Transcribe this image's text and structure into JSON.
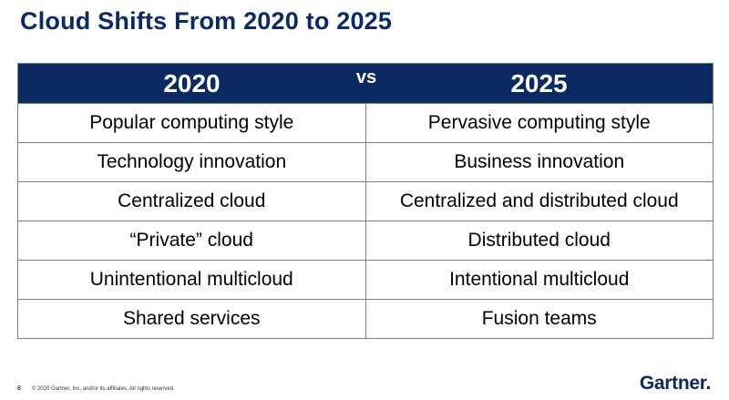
{
  "slide": {
    "title": "Cloud Shifts From 2020 to 2025",
    "colors": {
      "brand_navy": "#0b2a63",
      "border": "#7f7f7f"
    }
  },
  "table": {
    "header_left": "2020",
    "header_vs": "vs",
    "header_right": "2025",
    "rows": [
      {
        "left": "Popular computing style",
        "right": "Pervasive computing style"
      },
      {
        "left": "Technology innovation",
        "right": "Business innovation"
      },
      {
        "left": "Centralized cloud",
        "right": "Centralized and distributed cloud"
      },
      {
        "left": "“Private” cloud",
        "right": "Distributed cloud"
      },
      {
        "left": "Unintentional multicloud",
        "right": "Intentional multicloud"
      },
      {
        "left": "Shared services",
        "right": "Fusion teams"
      }
    ]
  },
  "footer": {
    "page_number": "8",
    "copyright": "© 2020 Gartner, Inc. and/or its affiliates. All rights reserved.",
    "logo_text": "Gartner."
  }
}
